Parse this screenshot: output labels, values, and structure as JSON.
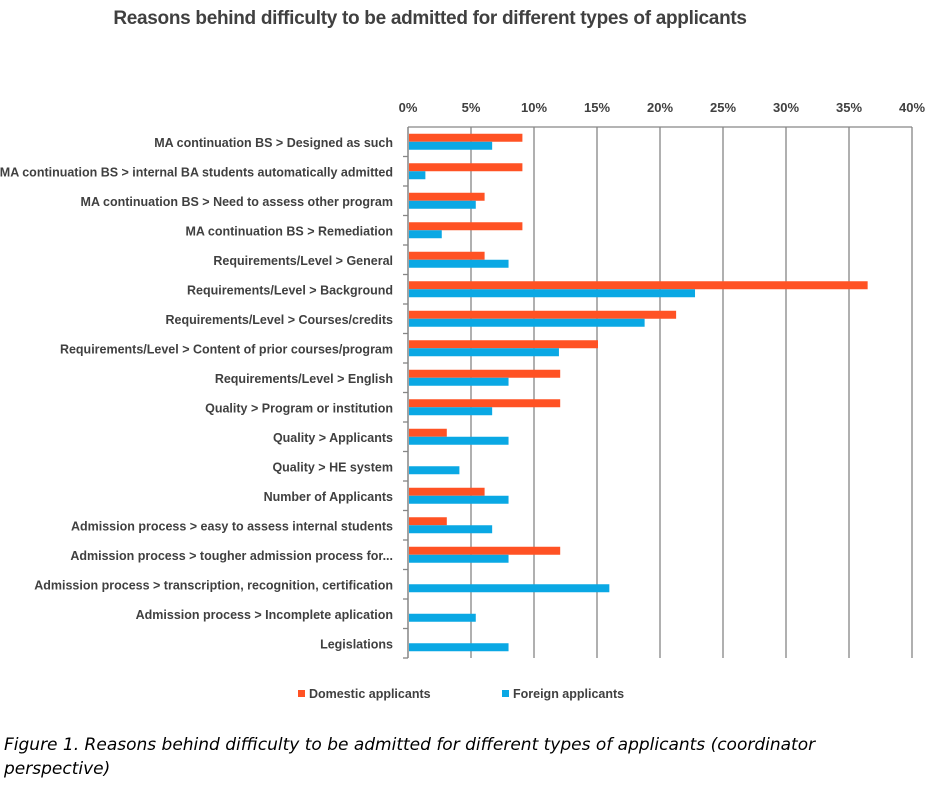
{
  "chart_data": {
    "type": "bar",
    "orientation": "horizontal",
    "title": "Reasons behind difficulty to be admitted for different types of applicants",
    "xlabel": "",
    "ylabel": "",
    "xlim": [
      0,
      40
    ],
    "xticks": [
      "0%",
      "5%",
      "10%",
      "15%",
      "20%",
      "25%",
      "30%",
      "35%",
      "40%"
    ],
    "grid": true,
    "legend_position": "bottom",
    "categories": [
      "MA continuation BS > Designed as such",
      "MA continuation BS > internal BA students automatically admitted",
      "MA continuation BS > Need to assess other program",
      "MA continuation BS > Remediation",
      "Requirements/Level > General",
      "Requirements/Level > Background",
      "Requirements/Level > Courses/credits",
      "Requirements/Level > Content of prior courses/program",
      "Requirements/Level > English",
      "Quality > Program or institution",
      "Quality > Applicants",
      "Quality > HE system",
      "Number of Applicants",
      "Admission process > easy to assess internal students",
      "Admission process > tougher admission process for...",
      "Admission process > transcription, recognition, certification",
      "Admission process > Incomplete aplication",
      "Legislations"
    ],
    "series": [
      {
        "name": "Domestic applicants",
        "color": "#FF5224",
        "values": [
          9.0,
          9.0,
          6.0,
          9.0,
          6.0,
          36.4,
          21.2,
          15.0,
          12.0,
          12.0,
          3.0,
          0,
          6.0,
          3.0,
          12.0,
          0,
          0,
          0
        ]
      },
      {
        "name": "Foreign applicants",
        "color": "#0AA8E4",
        "values": [
          6.6,
          1.3,
          5.3,
          2.6,
          7.9,
          22.7,
          18.7,
          11.9,
          7.9,
          6.6,
          7.9,
          4.0,
          7.9,
          6.6,
          7.9,
          15.9,
          5.3,
          7.9
        ]
      }
    ]
  },
  "caption": "Figure 1.  Reasons behind difficulty to be admitted for different types of applicants (coordinator perspective)"
}
